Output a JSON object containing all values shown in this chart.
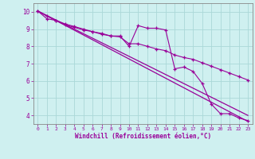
{
  "xlabel": "Windchill (Refroidissement éolien,°C)",
  "xlim": [
    -0.5,
    23.5
  ],
  "ylim": [
    3.5,
    10.5
  ],
  "xticks": [
    0,
    1,
    2,
    3,
    4,
    5,
    6,
    7,
    8,
    9,
    10,
    11,
    12,
    13,
    14,
    15,
    16,
    17,
    18,
    19,
    20,
    21,
    22,
    23
  ],
  "yticks": [
    4,
    5,
    6,
    7,
    8,
    9,
    10
  ],
  "background_color": "#cff0f0",
  "line_color": "#990099",
  "grid_color": "#aad8d8",
  "line1_x": [
    0,
    1,
    2,
    3,
    4,
    5,
    6,
    7,
    8,
    9,
    10,
    11,
    12,
    13,
    14,
    15,
    16,
    17,
    18,
    19,
    20,
    21,
    22,
    23
  ],
  "line1_y": [
    10.05,
    9.75,
    9.5,
    9.3,
    9.15,
    9.0,
    8.85,
    8.7,
    8.6,
    8.6,
    8.0,
    9.2,
    9.05,
    9.05,
    8.95,
    6.7,
    6.8,
    6.55,
    5.85,
    4.65,
    4.1,
    4.1,
    3.85,
    3.7
  ],
  "line2_x": [
    0,
    1,
    2,
    3,
    4,
    5,
    6,
    7,
    8,
    9,
    10,
    11,
    12,
    13,
    14,
    15,
    16,
    17,
    18,
    19,
    20,
    21,
    22,
    23
  ],
  "line2_y": [
    10.05,
    9.6,
    9.5,
    9.25,
    9.1,
    8.95,
    8.85,
    8.75,
    8.6,
    8.55,
    8.15,
    8.15,
    8.0,
    7.85,
    7.75,
    7.5,
    7.35,
    7.25,
    7.05,
    6.85,
    6.65,
    6.45,
    6.25,
    6.05
  ],
  "line3_x": [
    0,
    23
  ],
  "line3_y": [
    10.05,
    3.65
  ],
  "line4_x": [
    0,
    23
  ],
  "line4_y": [
    10.05,
    4.0
  ]
}
